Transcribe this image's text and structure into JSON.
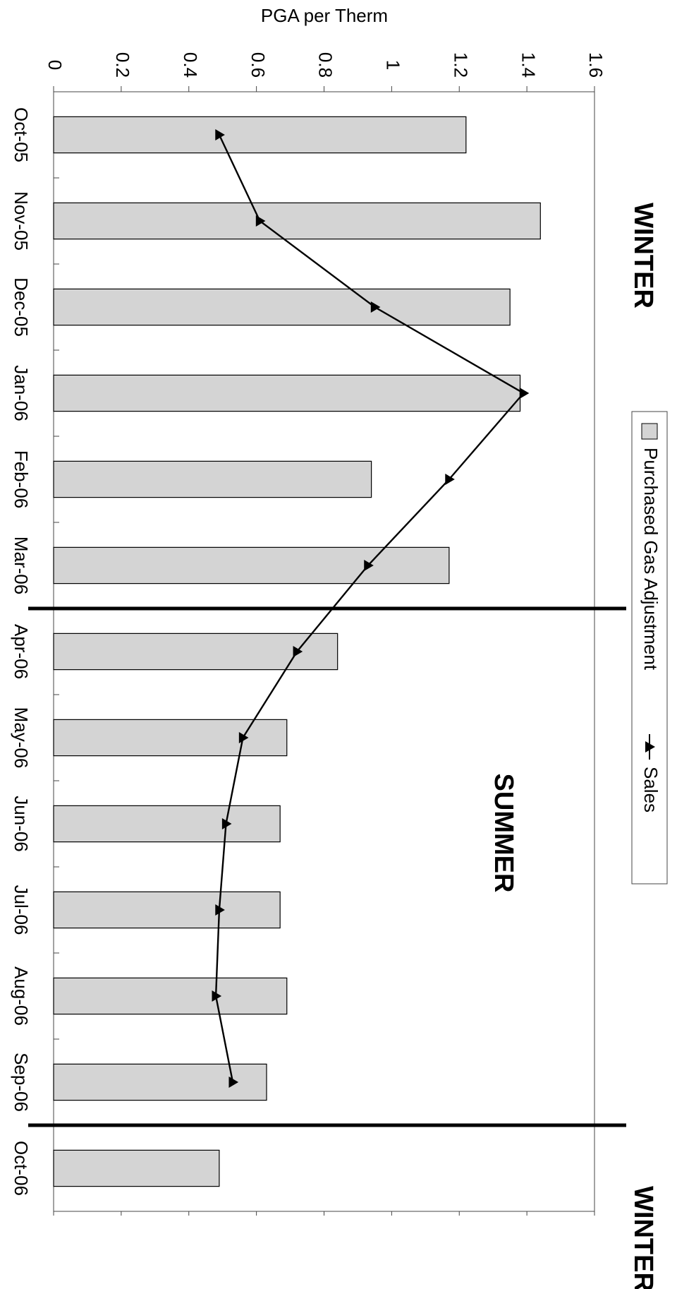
{
  "chart_data": {
    "type": "bar",
    "title": "",
    "ylabel": "PGA per Therm",
    "xlabel": "",
    "ylim": [
      0,
      1.6
    ],
    "yticks": [
      "0",
      "0.2",
      "0.4",
      "0.6",
      "0.8",
      "1",
      "1.2",
      "1.4",
      "1.6"
    ],
    "categories": [
      "Oct-05",
      "Nov-05",
      "Dec-05",
      "Jan-06",
      "Feb-06",
      "Mar-06",
      "Apr-06",
      "May-06",
      "Jun-06",
      "Jul-06",
      "Aug-06",
      "Sep-06",
      "Oct-06"
    ],
    "series": [
      {
        "name": "Purchased Gas Adjustment",
        "kind": "bar",
        "color": "#d4d4d4",
        "values": [
          1.22,
          1.44,
          1.35,
          1.38,
          0.94,
          1.17,
          0.84,
          0.69,
          0.67,
          0.67,
          0.69,
          0.63,
          0.49
        ]
      },
      {
        "name": "Sales",
        "kind": "line",
        "marker": "triangle",
        "color": "#000000",
        "values": [
          0.49,
          0.61,
          0.95,
          1.39,
          1.17,
          0.93,
          0.72,
          0.56,
          0.51,
          0.49,
          0.48,
          0.53,
          null
        ]
      }
    ],
    "season_labels": [
      {
        "text": "WINTER",
        "position": "start"
      },
      {
        "text": "SUMMER",
        "position": "middle"
      },
      {
        "text": "WINTER",
        "position": "end"
      }
    ],
    "season_dividers_after": [
      "Mar-06",
      "Sep-06"
    ],
    "legend": {
      "placement": "top-right",
      "entries": [
        "Purchased Gas Adjustment",
        "Sales"
      ],
      "sep": "—▲—"
    },
    "grid": false
  }
}
